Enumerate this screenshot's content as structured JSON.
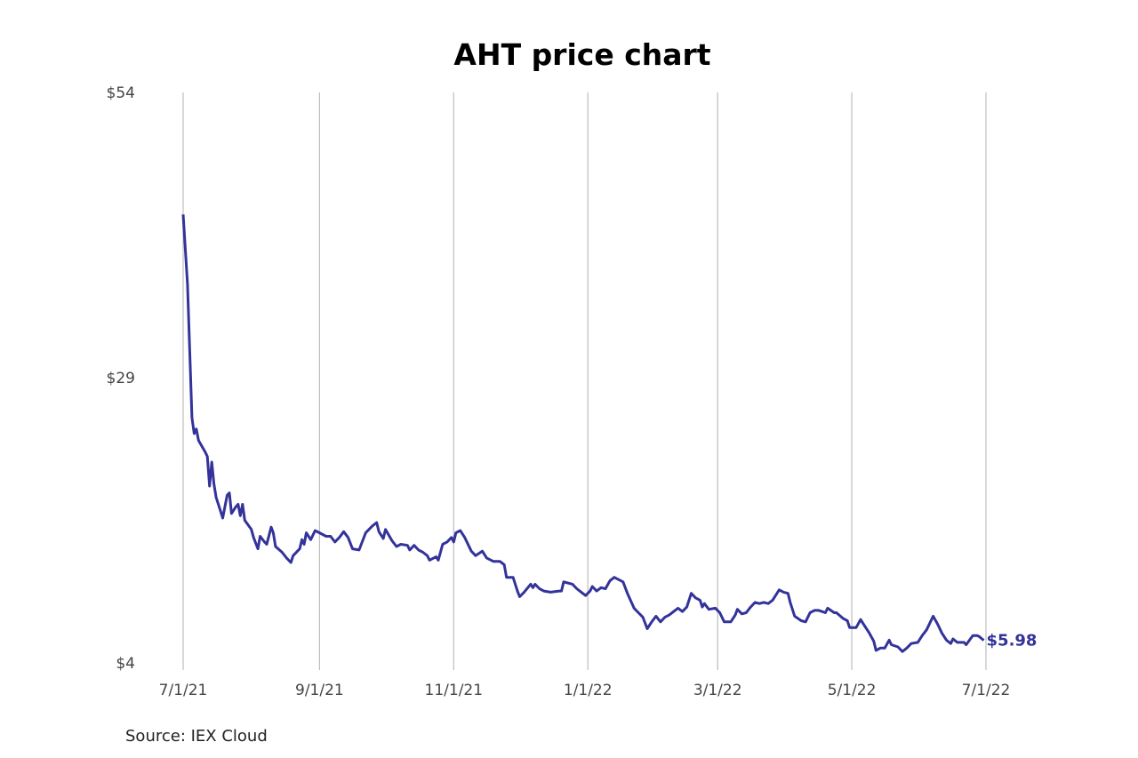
{
  "chart_data": {
    "type": "line",
    "title": "AHT price chart",
    "source": "Source: IEX Cloud",
    "xlabel": "",
    "ylabel": "",
    "x_unit": "days since 7/1/21",
    "xlim": [
      0,
      365
    ],
    "ylim": [
      4,
      54
    ],
    "grid": "vertical",
    "x_ticks": [
      {
        "value": 0,
        "label": "7/1/21"
      },
      {
        "value": 62,
        "label": "9/1/21"
      },
      {
        "value": 123,
        "label": "11/1/21"
      },
      {
        "value": 184,
        "label": "1/1/22"
      },
      {
        "value": 243,
        "label": "3/1/22"
      },
      {
        "value": 304,
        "label": "5/1/22"
      },
      {
        "value": 365,
        "label": "7/1/22"
      }
    ],
    "y_ticks": [
      {
        "value": 54,
        "label": "$54"
      },
      {
        "value": 29,
        "label": "$29"
      },
      {
        "value": 4,
        "label": "$4"
      }
    ],
    "last_label": "$5.98",
    "line_color": "#33339a",
    "series": [
      {
        "name": "AHT",
        "x": [
          0,
          2,
          4,
          5,
          6,
          7,
          10,
          11,
          12,
          13,
          14,
          15,
          17,
          18,
          20,
          21,
          22,
          24,
          25,
          26,
          27,
          28,
          31,
          32,
          34,
          35,
          37,
          38,
          40,
          41,
          42,
          45,
          47,
          49,
          50,
          53,
          54,
          55,
          56,
          58,
          60,
          62,
          65,
          67,
          69,
          71,
          73,
          75,
          77,
          80,
          83,
          86,
          88,
          89,
          91,
          92,
          95,
          97,
          99,
          102,
          103,
          105,
          107,
          109,
          111,
          112,
          115,
          116,
          118,
          120,
          122,
          123,
          124,
          126,
          128,
          131,
          133,
          136,
          138,
          141,
          144,
          146,
          147,
          150,
          152,
          153,
          155,
          158,
          159,
          160,
          162,
          164,
          167,
          171,
          172,
          173,
          177,
          179,
          181,
          183,
          185,
          186,
          188,
          190,
          192,
          194,
          196,
          200,
          202,
          205,
          207,
          209,
          211,
          213,
          215,
          217,
          219,
          221,
          223,
          225,
          227,
          229,
          231,
          233,
          235,
          236,
          237,
          239,
          242,
          244,
          246,
          249,
          251,
          252,
          254,
          256,
          258,
          260,
          262,
          264,
          266,
          268,
          271,
          273,
          275,
          276,
          278,
          281,
          283,
          285,
          287,
          289,
          292,
          293,
          296,
          297,
          300,
          302,
          303,
          306,
          308,
          310,
          312,
          314,
          315,
          317,
          319,
          321,
          322,
          325,
          327,
          329,
          331,
          334,
          336,
          338,
          341,
          343,
          345,
          347,
          349,
          350,
          352,
          355,
          356,
          359,
          361,
          362,
          364
        ],
        "y": [
          43.3,
          37.2,
          25.5,
          24.1,
          24.5,
          23.5,
          22.5,
          22.1,
          19.5,
          21.6,
          19.7,
          18.5,
          17.3,
          16.7,
          18.7,
          18.9,
          17.1,
          17.7,
          17.9,
          16.9,
          17.9,
          16.5,
          15.7,
          15.0,
          14.0,
          15.1,
          14.6,
          14.4,
          15.9,
          15.4,
          14.2,
          13.7,
          13.2,
          12.8,
          13.4,
          14.0,
          14.8,
          14.4,
          15.4,
          14.8,
          15.6,
          15.4,
          15.1,
          15.1,
          14.6,
          15.0,
          15.5,
          15.0,
          14.0,
          13.9,
          15.4,
          16.0,
          16.3,
          15.5,
          14.9,
          15.7,
          14.7,
          14.2,
          14.4,
          14.3,
          13.9,
          14.3,
          13.9,
          13.7,
          13.4,
          13.0,
          13.3,
          13.0,
          14.4,
          14.6,
          15.0,
          14.6,
          15.4,
          15.6,
          15.0,
          13.8,
          13.4,
          13.8,
          13.2,
          12.9,
          12.9,
          12.6,
          11.5,
          11.5,
          10.3,
          9.8,
          10.2,
          10.9,
          10.6,
          10.9,
          10.5,
          10.3,
          10.2,
          10.3,
          10.3,
          11.1,
          10.9,
          10.5,
          10.2,
          9.9,
          10.3,
          10.7,
          10.3,
          10.6,
          10.5,
          11.2,
          11.5,
          11.1,
          10.1,
          8.8,
          8.4,
          8.0,
          7.0,
          7.6,
          8.1,
          7.6,
          8.0,
          8.2,
          8.5,
          8.8,
          8.5,
          8.9,
          10.1,
          9.7,
          9.5,
          8.9,
          9.2,
          8.7,
          8.8,
          8.4,
          7.6,
          7.6,
          8.2,
          8.7,
          8.3,
          8.4,
          8.9,
          9.3,
          9.2,
          9.3,
          9.2,
          9.5,
          10.4,
          10.2,
          10.1,
          9.3,
          8.1,
          7.7,
          7.6,
          8.4,
          8.6,
          8.6,
          8.4,
          8.8,
          8.4,
          8.4,
          7.9,
          7.7,
          7.1,
          7.1,
          7.8,
          7.2,
          6.6,
          5.9,
          5.1,
          5.3,
          5.3,
          6.0,
          5.6,
          5.4,
          5.0,
          5.3,
          5.7,
          5.8,
          6.4,
          6.9,
          8.1,
          7.4,
          6.6,
          6.0,
          5.7,
          6.1,
          5.8,
          5.8,
          5.6,
          6.4,
          6.4,
          6.3,
          5.98
        ]
      }
    ]
  }
}
